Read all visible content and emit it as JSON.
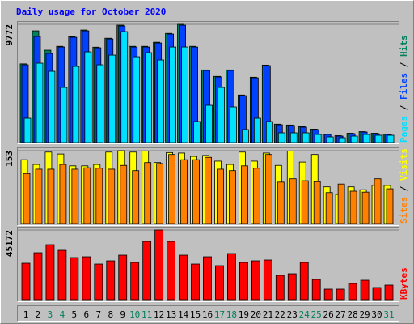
{
  "chart_data": [
    {
      "type": "bar",
      "title": "Daily usage for October 2020",
      "categories": [
        "1",
        "2",
        "3",
        "4",
        "5",
        "6",
        "7",
        "8",
        "9",
        "10",
        "11",
        "12",
        "13",
        "14",
        "15",
        "16",
        "17",
        "18",
        "19",
        "20",
        "21",
        "22",
        "23",
        "24",
        "25",
        "26",
        "27",
        "28",
        "29",
        "30",
        "31"
      ],
      "category_colors": [
        "#000000",
        "#000000",
        "#00805c",
        "#00805c",
        "#000000",
        "#000000",
        "#000000",
        "#000000",
        "#000000",
        "#00805c",
        "#00805c",
        "#000000",
        "#000000",
        "#000000",
        "#000000",
        "#000000",
        "#00805c",
        "#00805c",
        "#000000",
        "#000000",
        "#000000",
        "#000000",
        "#000000",
        "#00805c",
        "#00805c",
        "#000000",
        "#000000",
        "#000000",
        "#000000",
        "#000000",
        "#00805c"
      ],
      "legend_separator": " / ",
      "series": [
        {
          "name": "Hits",
          "color": "#00805c",
          "values": [
            6500,
            9232,
            7627,
            7950,
            8750,
            9300,
            7880,
            8620,
            9700,
            7950,
            7950,
            8290,
            9020,
            9772,
            7950,
            6000,
            5470,
            6000,
            3930,
            5400,
            6400,
            1520,
            1450,
            1310,
            1110,
            700,
            570,
            770,
            900,
            770,
            700
          ]
        },
        {
          "name": "Files",
          "color": "#0040ff",
          "values": [
            6423,
            8764,
            7359,
            7894,
            8697,
            9232,
            7827,
            8563,
            9634,
            7894,
            7894,
            8229,
            8965,
            9700,
            7894,
            5954,
            5419,
            5954,
            3880,
            5352,
            6356,
            1472,
            1405,
            1271,
            1070,
            669,
            535,
            736,
            870,
            736,
            669
          ]
        },
        {
          "name": "Pages",
          "color": "#00e0ff",
          "values": [
            2007,
            6556,
            5887,
            4549,
            6289,
            7493,
            6422,
            7225,
            9165,
            7091,
            7426,
            6824,
            7894,
            7894,
            1739,
            3077,
            4549,
            2944,
            1070,
            2007,
            1739,
            803,
            803,
            803,
            669,
            468,
            401,
            535,
            669,
            602,
            602
          ]
        }
      ],
      "ylim": [
        0,
        9772
      ],
      "yticks": [
        9772
      ]
    },
    {
      "type": "bar",
      "series": [
        {
          "name": "Visits",
          "color": "#ffff00",
          "values": [
            134,
            124,
            150,
            146,
            121,
            121,
            124,
            150,
            153,
            150,
            152,
            128,
            149,
            148,
            141,
            143,
            131,
            124,
            150,
            131,
            148,
            122,
            152,
            129,
            145,
            77,
            61,
            77,
            71,
            80,
            80
          ]
        },
        {
          "name": "Sites",
          "color": "#ff8000",
          "values": [
            105,
            114,
            114,
            124,
            114,
            117,
            116,
            114,
            122,
            111,
            128,
            126,
            145,
            134,
            134,
            139,
            114,
            111,
            121,
            116,
            145,
            87,
            94,
            90,
            88,
            65,
            83,
            68,
            66,
            94,
            73
          ]
        }
      ],
      "ylim": [
        0,
        153
      ],
      "yticks": [
        153
      ]
    },
    {
      "type": "bar",
      "series": [
        {
          "name": "KBytes",
          "color": "#ff0000",
          "values": [
            23625,
            30450,
            35700,
            32025,
            27300,
            27825,
            23100,
            25200,
            28875,
            24150,
            37800,
            45172,
            37800,
            28875,
            23100,
            27825,
            22050,
            29925,
            24150,
            25200,
            25725,
            15750,
            16800,
            24150,
            13125,
            6825,
            6825,
            10500,
            12600,
            7875,
            9450
          ]
        }
      ],
      "ylim": [
        0,
        45172
      ],
      "yticks": [
        45172
      ]
    }
  ]
}
